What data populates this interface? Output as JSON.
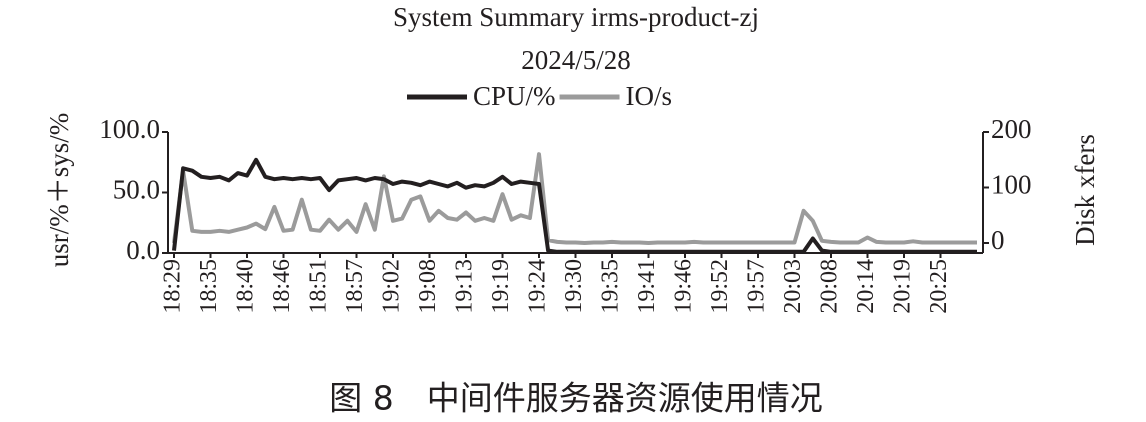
{
  "chart_data": {
    "type": "line",
    "title": "System Summary irms-product-zj",
    "subtitle": "2024/5/28",
    "ylabel": "usr/%＋sys/%",
    "y2label": "Disk xfers",
    "caption": "图 8　中间件服务器资源使用情况",
    "categories": [
      "18:29",
      null,
      null,
      null,
      "18:35",
      null,
      null,
      null,
      "18:40",
      null,
      null,
      null,
      "18:46",
      null,
      null,
      null,
      "18:51",
      null,
      null,
      null,
      "18:57",
      null,
      null,
      null,
      "19:02",
      null,
      null,
      null,
      "19:08",
      null,
      null,
      null,
      "19:13",
      null,
      null,
      null,
      "19:19",
      null,
      null,
      null,
      "19:24",
      null,
      null,
      null,
      "19:30",
      null,
      null,
      null,
      "19:35",
      null,
      null,
      null,
      "19:41",
      null,
      null,
      null,
      "19:46",
      null,
      null,
      null,
      "19:52",
      null,
      null,
      null,
      "19:57",
      null,
      null,
      null,
      "20:03",
      null,
      null,
      null,
      "20:08",
      null,
      null,
      null,
      "20:14",
      null,
      null,
      null,
      "20:19",
      null,
      null,
      null,
      "20:25",
      null,
      null,
      null,
      null
    ],
    "series": [
      {
        "name": "CPU/%",
        "color": "#231f20",
        "values": [
          2,
          70,
          68,
          63,
          62,
          63,
          60,
          66,
          64,
          77,
          63,
          61,
          62,
          61,
          62,
          61,
          62,
          52,
          60,
          61,
          62,
          60,
          62,
          61,
          57,
          59,
          58,
          56,
          59,
          57,
          55,
          58,
          54,
          56,
          55,
          58,
          63,
          57,
          59,
          58,
          57,
          2,
          1,
          1,
          1,
          1,
          1,
          1,
          1,
          1,
          1,
          1,
          1,
          1,
          1,
          1,
          1,
          1,
          1,
          1,
          1,
          1,
          1,
          1,
          1,
          1,
          1,
          1,
          1,
          1,
          12,
          2,
          1,
          1,
          1,
          1,
          1,
          1,
          1,
          1,
          1,
          1,
          1,
          1,
          1,
          1,
          1,
          1,
          1
        ]
      },
      {
        "name": "IO/s",
        "color": "#9b9b9b",
        "axis": "y2",
        "values": [
          0,
          130,
          22,
          20,
          20,
          22,
          20,
          24,
          28,
          35,
          25,
          65,
          22,
          24,
          78,
          24,
          22,
          42,
          24,
          40,
          20,
          70,
          24,
          120,
          40,
          44,
          78,
          84,
          40,
          58,
          45,
          42,
          55,
          40,
          45,
          40,
          88,
          42,
          50,
          45,
          160,
          5,
          2,
          1,
          1,
          0,
          1,
          1,
          2,
          1,
          1,
          1,
          0,
          1,
          1,
          1,
          1,
          2,
          1,
          1,
          1,
          1,
          1,
          1,
          1,
          1,
          1,
          1,
          1,
          58,
          40,
          4,
          2,
          1,
          1,
          1,
          10,
          2,
          1,
          1,
          1,
          3,
          1,
          1,
          1,
          1,
          1,
          1,
          1
        ]
      }
    ],
    "ylim": [
      0,
      100
    ],
    "yticks": [
      {
        "value": 0,
        "label": "0.0"
      },
      {
        "value": 50,
        "label": "50.0"
      },
      {
        "value": 100,
        "label": "100.0"
      }
    ],
    "y2lim": [
      -18,
      200
    ],
    "y2ticks": [
      0,
      100,
      200
    ],
    "legend": "top"
  }
}
